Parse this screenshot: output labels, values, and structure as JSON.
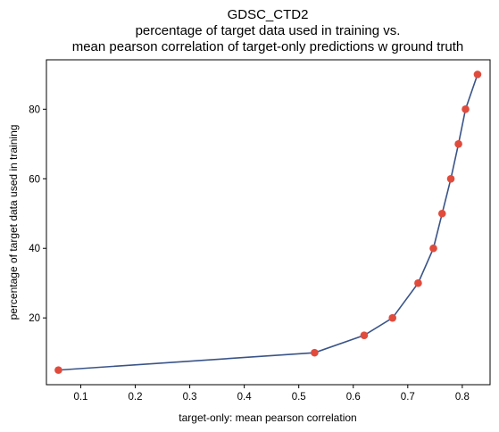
{
  "chart_data": {
    "type": "line",
    "title_lines": [
      "GDSC_CTD2",
      "percentage of target data used in training vs.",
      "mean pearson correlation of target-only predictions w ground truth"
    ],
    "xlabel": "target-only: mean pearson correlation",
    "ylabel": "percentage of target data used in training",
    "xlim": [
      0.037,
      0.851
    ],
    "ylim": [
      0.8,
      94.2
    ],
    "x_ticks": [
      0.1,
      0.2,
      0.3,
      0.4,
      0.5,
      0.6,
      0.7,
      0.8
    ],
    "x_tick_labels": [
      "0.1",
      "0.2",
      "0.3",
      "0.4",
      "0.5",
      "0.6",
      "0.7",
      "0.8"
    ],
    "y_ticks": [
      20,
      40,
      60,
      80
    ],
    "y_tick_labels": [
      "20",
      "40",
      "60",
      "80"
    ],
    "grid": false,
    "series": [
      {
        "line_color": "#3a5488",
        "marker_color": "#e04b3c",
        "points": [
          {
            "x": 0.059,
            "y": 5
          },
          {
            "x": 0.529,
            "y": 10
          },
          {
            "x": 0.62,
            "y": 15
          },
          {
            "x": 0.672,
            "y": 20
          },
          {
            "x": 0.719,
            "y": 30
          },
          {
            "x": 0.747,
            "y": 40
          },
          {
            "x": 0.763,
            "y": 50
          },
          {
            "x": 0.779,
            "y": 60
          },
          {
            "x": 0.793,
            "y": 70
          },
          {
            "x": 0.806,
            "y": 80
          },
          {
            "x": 0.828,
            "y": 90
          }
        ]
      }
    ]
  }
}
